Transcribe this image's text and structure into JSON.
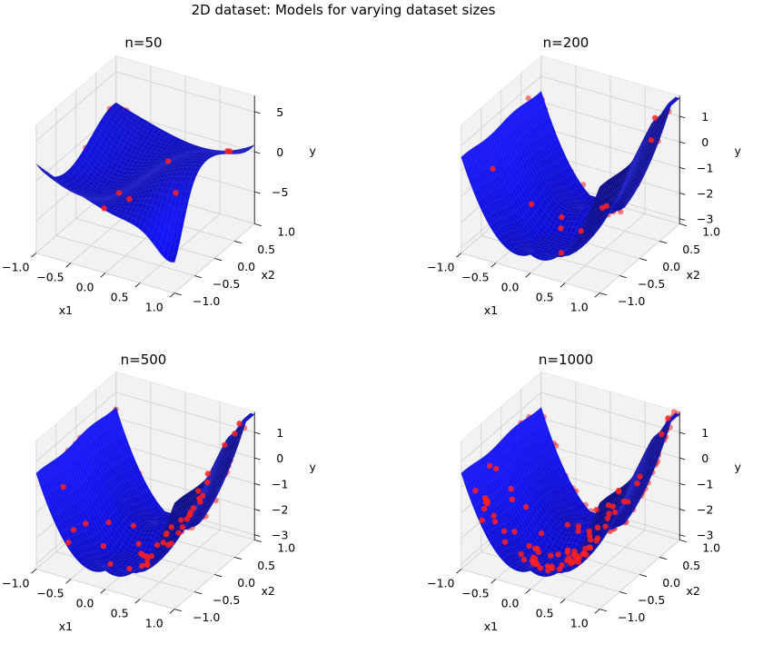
{
  "figure": {
    "title": "2D dataset: Models for varying dataset sizes"
  },
  "colors": {
    "surface_dark": "#0a0a6e",
    "surface_light": "#1e1ef5",
    "points": "#ff2020",
    "pane": "#f2f2f2",
    "grid": "#cfcfcf"
  },
  "chart_data": [
    {
      "type": "surface3d",
      "title": "n=50",
      "xlabel": "x1",
      "ylabel": "x2",
      "zlabel": "y",
      "xticks": [
        "−1.0",
        "−0.5",
        "0.0",
        "0.5",
        "1.0"
      ],
      "yticks": [
        "−1.0",
        "−0.5",
        "0.0",
        "0.5",
        "1.0"
      ],
      "zticks": [
        "5",
        "0",
        "−5"
      ],
      "xlim": [
        -1,
        1
      ],
      "ylim": [
        -1,
        1
      ],
      "zlim": [
        -9,
        7
      ],
      "grid": true,
      "n_points": 50,
      "model": "wavy fit with overshoot at corners (range approx. -8 to 7)"
    },
    {
      "type": "surface3d",
      "title": "n=200",
      "xlabel": "x1",
      "ylabel": "x2",
      "zlabel": "y",
      "xticks": [
        "−1.0",
        "−0.5",
        "0.0",
        "0.5",
        "1.0"
      ],
      "yticks": [
        "−1.0",
        "−0.5",
        "0.0",
        "0.5",
        "1.0"
      ],
      "zticks": [
        "1",
        "0",
        "−1",
        "−2",
        "−3"
      ],
      "xlim": [
        -1,
        1
      ],
      "ylim": [
        -1,
        1
      ],
      "zlim": [
        -3.2,
        1.8
      ],
      "grid": true,
      "n_points": 200,
      "model": "valley surface, high along x1=-1, dip near x1=0"
    },
    {
      "type": "surface3d",
      "title": "n=500",
      "xlabel": "x1",
      "ylabel": "x2",
      "zlabel": "y",
      "xticks": [
        "−1.0",
        "−0.5",
        "0.0",
        "0.5",
        "1.0"
      ],
      "yticks": [
        "−1.0",
        "−0.5",
        "0.0",
        "0.5",
        "1.0"
      ],
      "zticks": [
        "1",
        "0",
        "−1",
        "−2",
        "−3"
      ],
      "xlim": [
        -1,
        1
      ],
      "ylim": [
        -1,
        1
      ],
      "zlim": [
        -3.2,
        1.8
      ],
      "grid": true,
      "n_points": 500,
      "model": "valley surface, high along x1=-1, dip near x1=0"
    },
    {
      "type": "surface3d",
      "title": "n=1000",
      "xlabel": "x1",
      "ylabel": "x2",
      "zlabel": "y",
      "xticks": [
        "−1.0",
        "−0.5",
        "0.0",
        "0.5",
        "1.0"
      ],
      "yticks": [
        "−1.0",
        "−0.5",
        "0.0",
        "0.5",
        "1.0"
      ],
      "zticks": [
        "1",
        "0",
        "−1",
        "−2",
        "−3"
      ],
      "xlim": [
        -1,
        1
      ],
      "ylim": [
        -1,
        1
      ],
      "zlim": [
        -3.2,
        1.8
      ],
      "grid": true,
      "n_points": 1000,
      "model": "valley surface, high along x1=-1, dip near x1=0"
    }
  ]
}
